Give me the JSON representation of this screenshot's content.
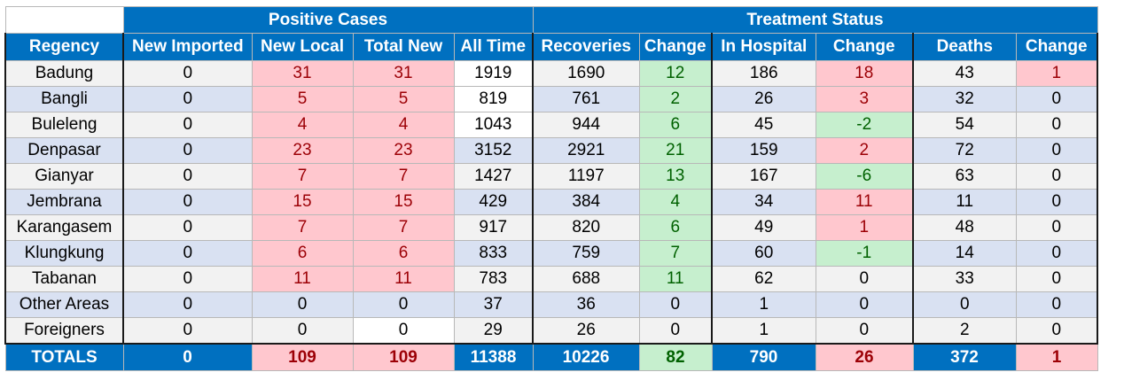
{
  "header": {
    "groups": {
      "positive": "Positive Cases",
      "treatment": "Treatment Status"
    },
    "columns": [
      "Regency",
      "New Imported",
      "New Local",
      "Total New",
      "All Time",
      "Recoveries",
      "Change",
      "In Hospital",
      "Change",
      "Deaths",
      "Change"
    ]
  },
  "rows": [
    {
      "name": "Badung",
      "cells": [
        "0",
        "31",
        "31",
        "1919",
        "1690",
        "12",
        "186",
        "18",
        "43",
        "1"
      ]
    },
    {
      "name": "Bangli",
      "cells": [
        "0",
        "5",
        "5",
        "819",
        "761",
        "2",
        "26",
        "3",
        "32",
        "0"
      ]
    },
    {
      "name": "Buleleng",
      "cells": [
        "0",
        "4",
        "4",
        "1043",
        "944",
        "6",
        "45",
        "-2",
        "54",
        "0"
      ]
    },
    {
      "name": "Denpasar",
      "cells": [
        "0",
        "23",
        "23",
        "3152",
        "2921",
        "21",
        "159",
        "2",
        "72",
        "0"
      ]
    },
    {
      "name": "Gianyar",
      "cells": [
        "0",
        "7",
        "7",
        "1427",
        "1197",
        "13",
        "167",
        "-6",
        "63",
        "0"
      ]
    },
    {
      "name": "Jembrana",
      "cells": [
        "0",
        "15",
        "15",
        "429",
        "384",
        "4",
        "34",
        "11",
        "11",
        "0"
      ]
    },
    {
      "name": "Karangasem",
      "cells": [
        "0",
        "7",
        "7",
        "917",
        "820",
        "6",
        "49",
        "1",
        "48",
        "0"
      ]
    },
    {
      "name": "Klungkung",
      "cells": [
        "0",
        "6",
        "6",
        "833",
        "759",
        "7",
        "60",
        "-1",
        "14",
        "0"
      ]
    },
    {
      "name": "Tabanan",
      "cells": [
        "0",
        "11",
        "11",
        "783",
        "688",
        "11",
        "62",
        "0",
        "33",
        "0"
      ]
    },
    {
      "name": "Other Areas",
      "cells": [
        "0",
        "0",
        "0",
        "37",
        "36",
        "0",
        "1",
        "0",
        "0",
        "0"
      ]
    },
    {
      "name": "Foreigners",
      "cells": [
        "0",
        "0",
        "0",
        "29",
        "26",
        "0",
        "1",
        "0",
        "2",
        "0"
      ]
    }
  ],
  "totals": {
    "name": "TOTALS",
    "cells": [
      "0",
      "109",
      "109",
      "11388",
      "10226",
      "82",
      "790",
      "26",
      "372",
      "1"
    ]
  },
  "colors": {
    "header_blue": "#0070c0",
    "row_gray": "#f2f2f2",
    "row_blue": "#d9e1f2",
    "positive_red_fill": "#ffc7ce",
    "positive_red_text": "#9c0006",
    "good_green_fill": "#c6efce",
    "good_green_text": "#006100"
  }
}
